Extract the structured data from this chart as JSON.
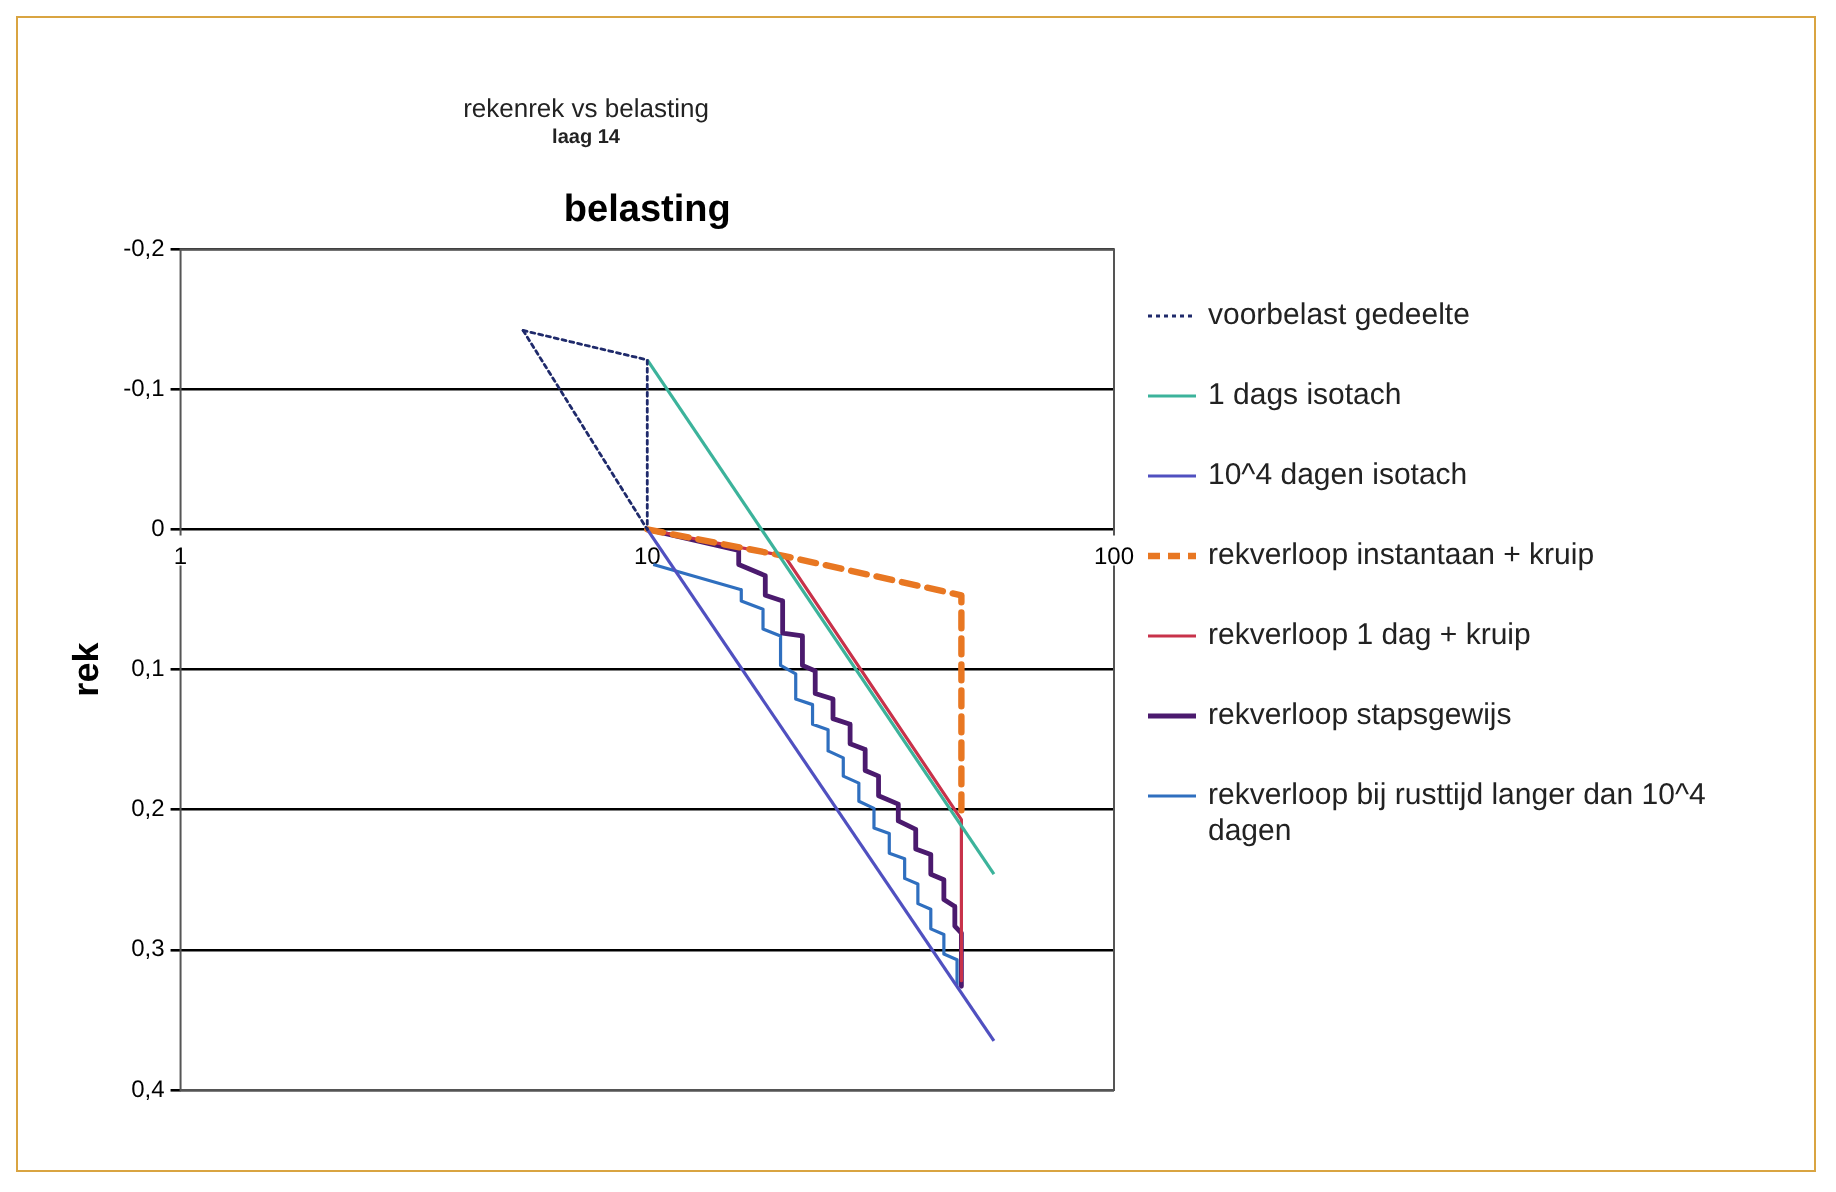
{
  "chart_data": {
    "type": "line",
    "title": "rekenrek vs belasting",
    "subtitle": "laag 14",
    "xlabel": "belasting",
    "ylabel": "rek",
    "log": "x",
    "xlim": [
      1,
      100
    ],
    "xticks": [
      1,
      10,
      100
    ],
    "ylim": [
      0.4,
      -0.2
    ],
    "yticks": [
      {
        "value": -0.2,
        "label": "-0,2"
      },
      {
        "value": -0.1,
        "label": "-0,1"
      },
      {
        "value": 0,
        "label": "0"
      },
      {
        "value": 0.1,
        "label": "0,1"
      },
      {
        "value": 0.2,
        "label": "0,2"
      },
      {
        "value": 0.3,
        "label": "0,3"
      },
      {
        "value": 0.4,
        "label": "0,4"
      }
    ],
    "grid": "y",
    "legend": "right",
    "marker": "none",
    "series": [
      {
        "name": "voorbelast gedeelte",
        "color": "#1f2a6b",
        "line_style": "dotted",
        "x": [
          5.42,
          10,
          10
        ],
        "values": [
          -0.142,
          -0.121,
          0
        ]
      },
      {
        "color": "#1f2a6b",
        "line_style": "dotted",
        "x": [
          5.42,
          10
        ],
        "values": [
          -0.142,
          0
        ]
      },
      {
        "name": "1 dags isotach",
        "color": "#3cb39b",
        "line_style": "solid",
        "x": [
          10,
          55.3
        ],
        "values": [
          -0.121,
          0.246
        ]
      },
      {
        "name": "10^4 dagen isotach",
        "color": "#5050c0",
        "line_style": "solid",
        "x": [
          10,
          55.3
        ],
        "values": [
          0,
          0.365
        ]
      },
      {
        "name": "rekverloop instantaan + kruip",
        "color": "#e87722",
        "line_style": "dashed",
        "x": [
          10,
          19.7,
          47.1,
          47.1
        ],
        "values": [
          0,
          0.019,
          0.047,
          0.207
        ]
      },
      {
        "name": "rekverloop 1 dag + kruip",
        "color": "#c8324a",
        "line_style": "solid",
        "x": [
          10,
          19.7,
          47.1,
          47.1
        ],
        "values": [
          0,
          0.019,
          0.207,
          0.322
        ]
      },
      {
        "name": "rekverloop stapsgewijs",
        "color": "#4b1a6e",
        "line_style": "solid",
        "x": [
          10,
          15.7,
          15.7,
          17.9,
          17.9,
          19.5,
          19.5,
          21.5,
          21.5,
          22.9,
          22.9,
          25.0,
          25.0,
          27.2,
          27.2,
          29.3,
          29.3,
          31.3,
          31.3,
          34.5,
          34.5,
          37.6,
          37.6,
          40.5,
          40.5,
          43.2,
          43.2,
          45.6,
          45.6,
          47.1,
          47.1
        ],
        "values": [
          0,
          0.015,
          0.025,
          0.033,
          0.047,
          0.051,
          0.074,
          0.076,
          0.097,
          0.101,
          0.117,
          0.121,
          0.135,
          0.139,
          0.153,
          0.157,
          0.172,
          0.176,
          0.19,
          0.196,
          0.208,
          0.214,
          0.228,
          0.232,
          0.246,
          0.25,
          0.264,
          0.269,
          0.283,
          0.288,
          0.326
        ]
      },
      {
        "name": "rekverloop bij rusttijd langer dan 10^4 dagen",
        "color": "#2f6fbf",
        "line_style": "solid",
        "x": [
          10.3,
          15.9,
          15.9,
          17.7,
          17.7,
          19.3,
          19.3,
          20.8,
          20.8,
          22.6,
          22.6,
          24.4,
          24.4,
          26.3,
          26.3,
          28.4,
          28.4,
          30.6,
          30.6,
          33.0,
          33.0,
          35.6,
          35.6,
          38.0,
          38.0,
          40.5,
          40.5,
          43.2,
          43.2,
          46.1,
          46.1
        ],
        "values": [
          0.025,
          0.043,
          0.051,
          0.057,
          0.071,
          0.076,
          0.097,
          0.103,
          0.121,
          0.125,
          0.139,
          0.143,
          0.158,
          0.163,
          0.176,
          0.181,
          0.194,
          0.199,
          0.213,
          0.217,
          0.231,
          0.235,
          0.249,
          0.253,
          0.267,
          0.271,
          0.285,
          0.289,
          0.303,
          0.307,
          0.325
        ]
      }
    ]
  }
}
